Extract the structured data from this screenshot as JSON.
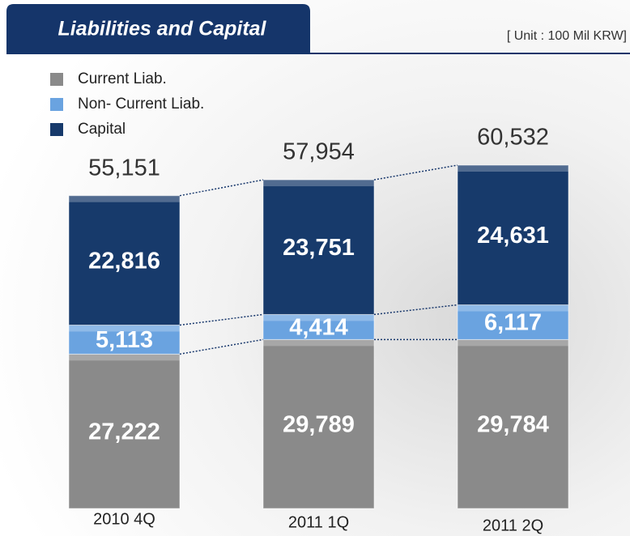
{
  "chart_data": {
    "type": "stacked-bar",
    "title": "Liabilities and Capital",
    "subtitle": "[ Unit : 100 Mil KRW]",
    "categories": [
      "2010 4Q",
      "2011 1Q",
      "2011 2Q"
    ],
    "series": [
      {
        "name": "Current Liab.",
        "color": "#8a8a8a",
        "values": [
          27222,
          29789,
          29784
        ],
        "value_labels": [
          "27,222",
          "29,789",
          "29,784"
        ]
      },
      {
        "name": "Non- Current Liab.",
        "color": "#6aa3e0",
        "values": [
          5113,
          4414,
          6117
        ],
        "value_labels": [
          "5,113",
          "4,414",
          "6,117"
        ]
      },
      {
        "name": "Capital",
        "color": "#173a6b",
        "values": [
          22816,
          23751,
          24631
        ],
        "value_labels": [
          "22,816",
          "23,751",
          "24,631"
        ]
      }
    ],
    "totals": [
      55151,
      57954,
      60532
    ],
    "total_labels": [
      "55,151",
      "57,954",
      "60,532"
    ]
  }
}
